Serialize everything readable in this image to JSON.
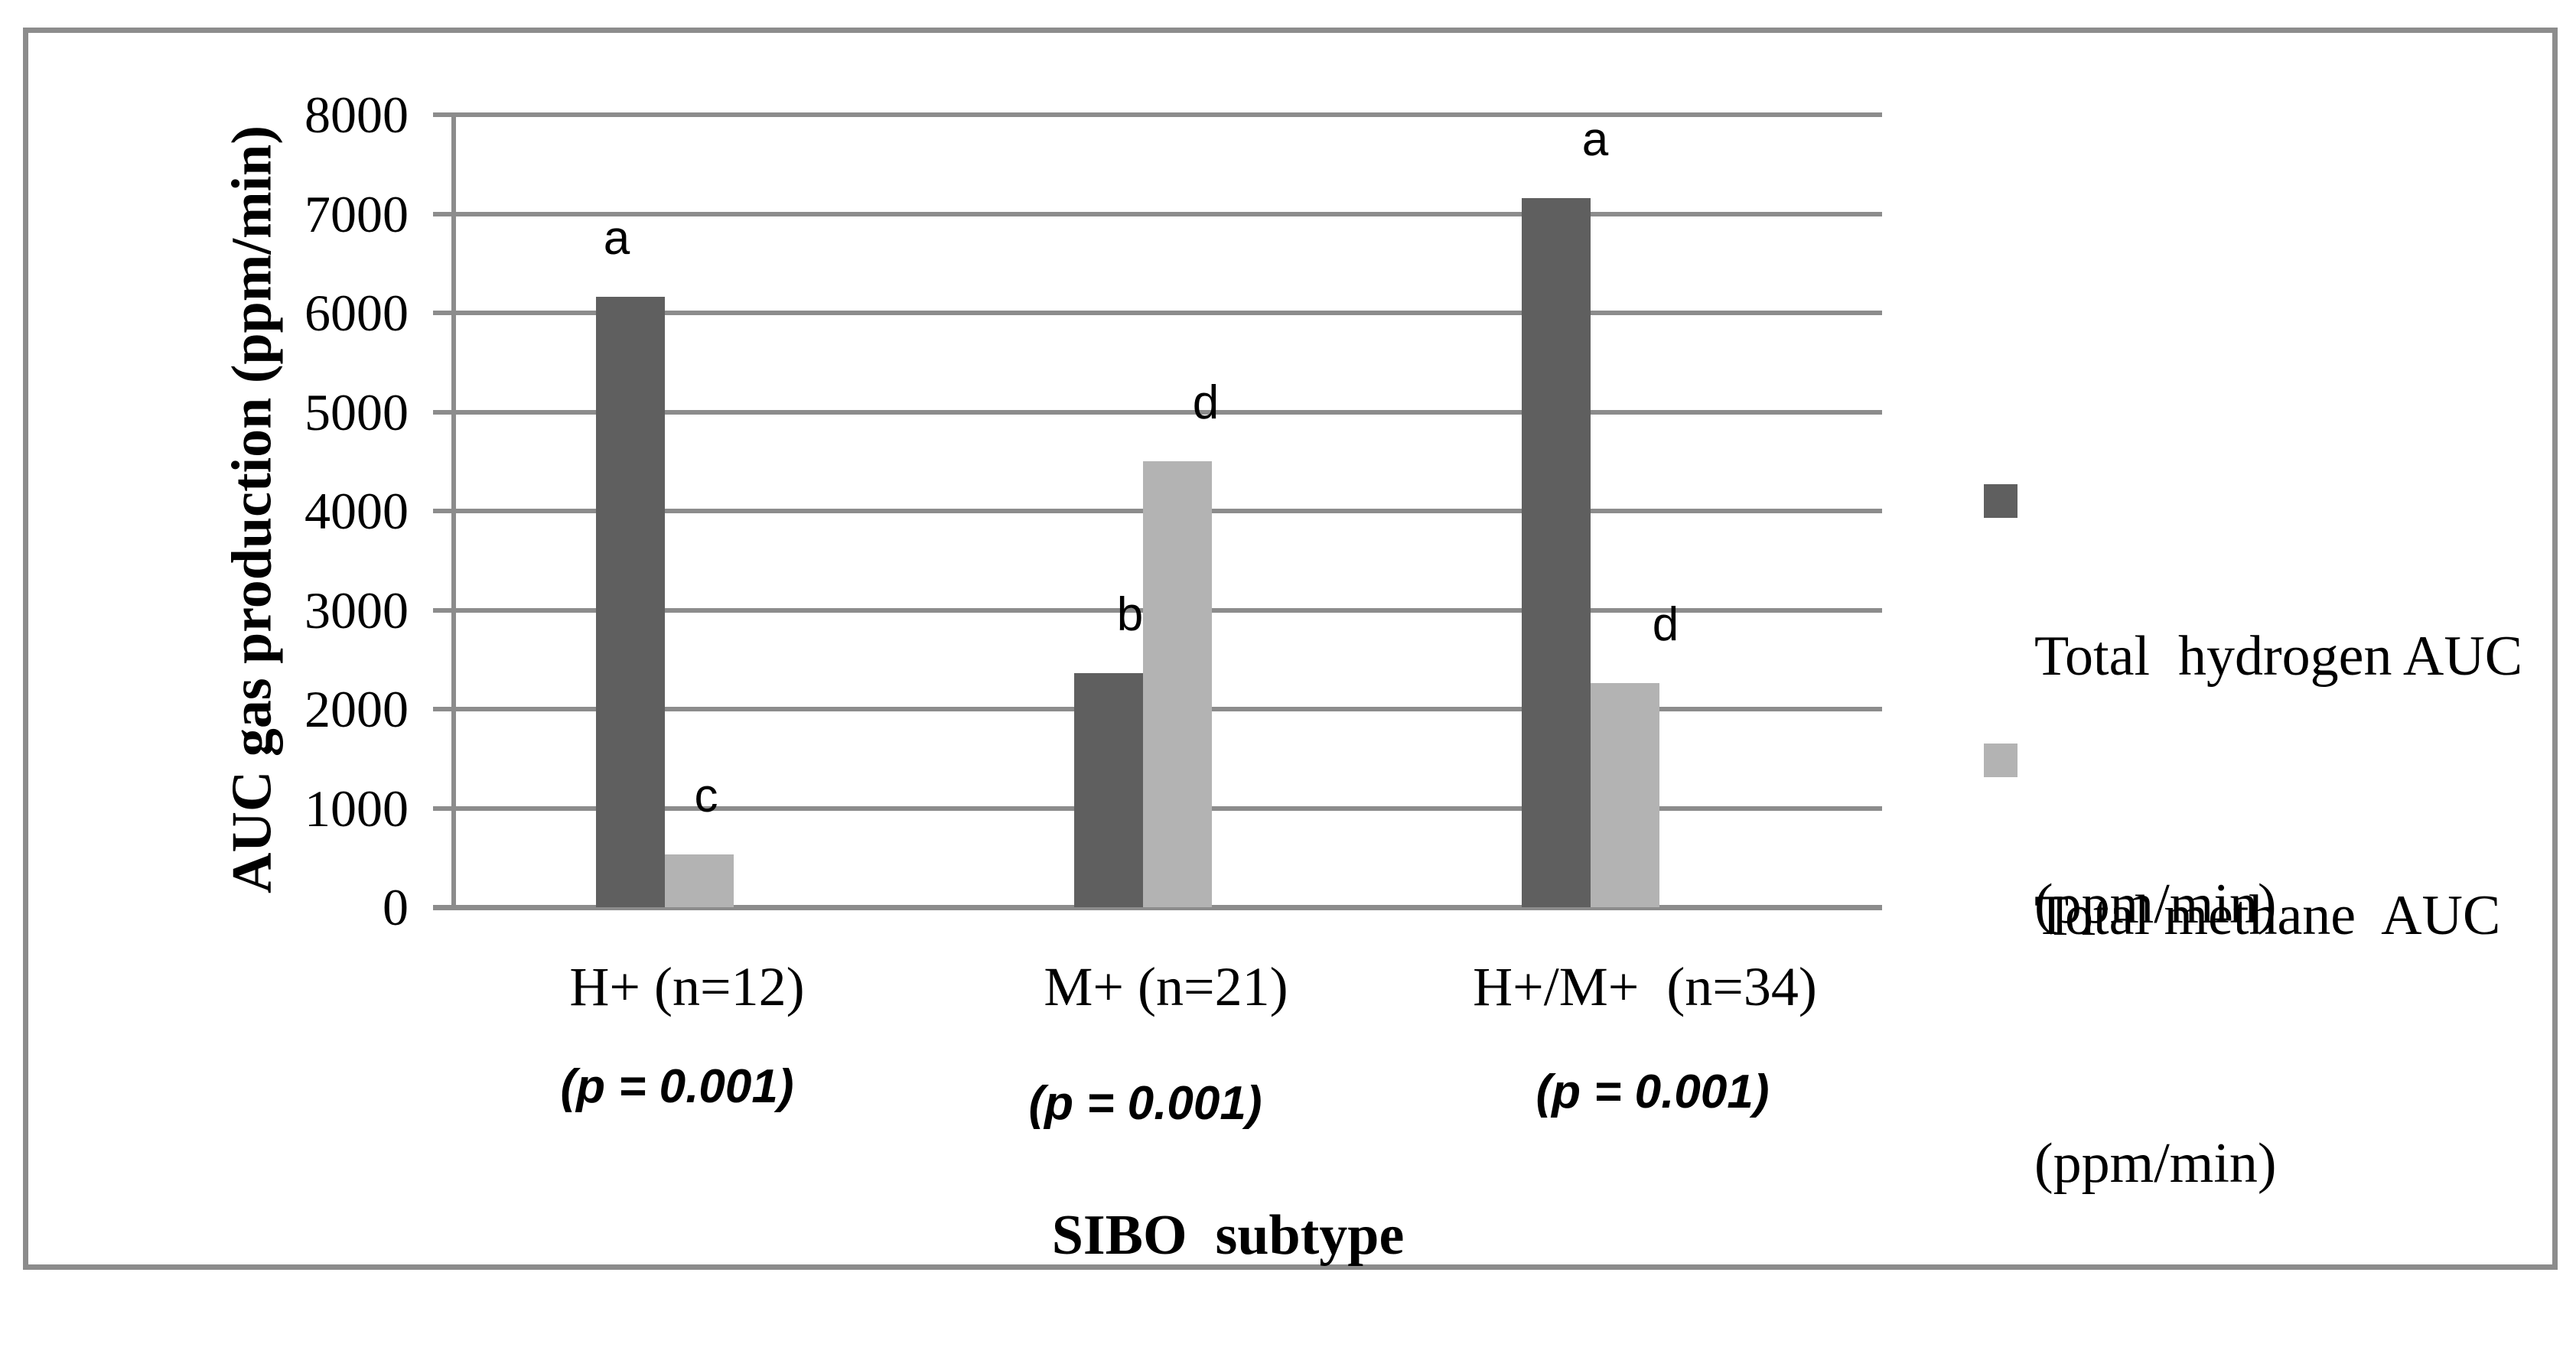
{
  "chart_data": {
    "type": "bar",
    "title": "",
    "categories": [
      "H+ (n=12)",
      "M+ (n=21)",
      "H+/M+  (n=34)"
    ],
    "p_value_labels": [
      "(p = 0.001)",
      "(p = 0.001)",
      "(p = 0.001)"
    ],
    "series": [
      {
        "name": "Total  hydrogen AUC (ppm/min)",
        "legend_lines": [
          "Total  hydrogen AUC",
          "(ppm/min)"
        ],
        "color": "#5f5f5f",
        "values": [
          6160,
          2360,
          7160
        ],
        "bar_letters": [
          "a",
          "b",
          "a"
        ]
      },
      {
        "name": "Total methane  AUC (ppm/min)",
        "legend_lines": [
          "Total methane  AUC",
          "(ppm/min)"
        ],
        "color": "#b3b3b3",
        "values": [
          530,
          4500,
          2260
        ],
        "bar_letters": [
          "c",
          "d",
          "d"
        ]
      }
    ],
    "xlabel": "SIBO  subtype",
    "ylabel": "AUC gas production (ppm/min)",
    "ylim": [
      0,
      8000
    ],
    "ytick_step": 1000,
    "y_ticks": [
      "0",
      "1000",
      "2000",
      "3000",
      "4000",
      "5000",
      "6000",
      "7000",
      "8000"
    ],
    "grid": true,
    "legend_position": "right-middle"
  },
  "colors": {
    "hydrogen_bar": "#5f5f5f",
    "methane_bar": "#b3b3b3",
    "gridline": "#8c8c8c",
    "frame_border": "#8c8c8c",
    "text": "#000000",
    "background": "#ffffff"
  }
}
